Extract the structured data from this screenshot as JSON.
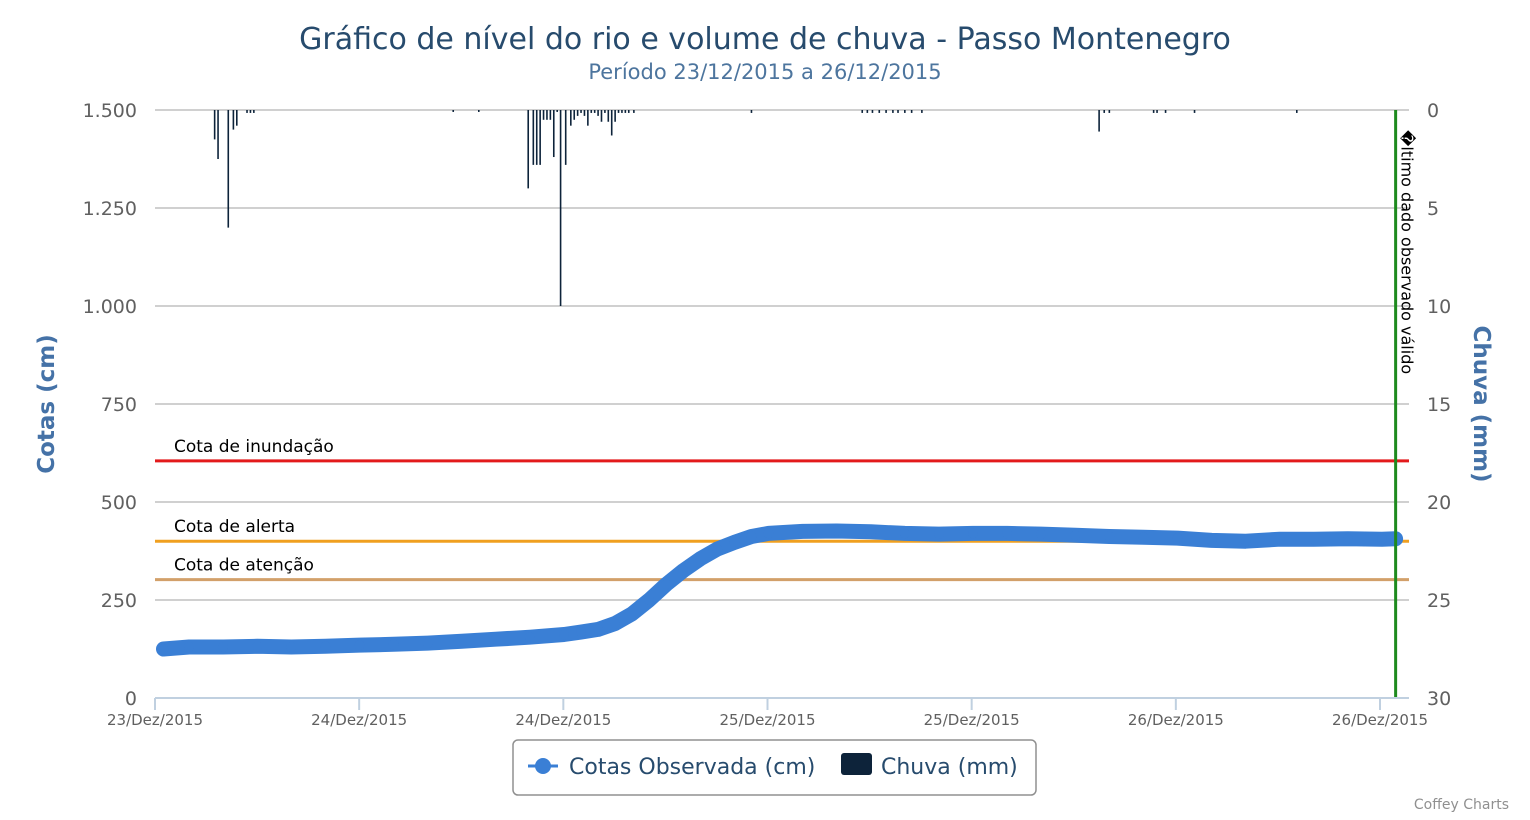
{
  "chart_data": {
    "type": "line",
    "title": "Gráfico de nível do rio e volume de chuva - Passo Montenegro",
    "subtitle": "Período 23/12/2015 a 26/12/2015",
    "y_left": {
      "label": "Cotas (cm)",
      "ylim": [
        0,
        1500
      ],
      "ticks": [
        "0",
        "250",
        "500",
        "750",
        "1.000",
        "1.250",
        "1.500"
      ],
      "tick_values": [
        0,
        250,
        500,
        750,
        1000,
        1250,
        1500
      ]
    },
    "y_right": {
      "label": "Chuva (mm)",
      "ylim": [
        0,
        30
      ],
      "reversed": true,
      "ticks": [
        "0",
        "5",
        "10",
        "15",
        "20",
        "25",
        "30"
      ],
      "tick_values": [
        0,
        5,
        10,
        15,
        20,
        25,
        30
      ]
    },
    "x_ticks": [
      "23/Dez/2015",
      "24/Dez/2015",
      "24/Dez/2015",
      "25/Dez/2015",
      "25/Dez/2015",
      "26/Dez/2015",
      "26/Dez/2015"
    ],
    "x_range_hours": [
      0,
      72
    ],
    "grid": true,
    "legend_position": "bottom-center",
    "plot_bands": [
      {
        "label": "Cota de inundação",
        "value": 605,
        "color": "#e31a1c"
      },
      {
        "label": "Cota de alerta",
        "value": 400,
        "color": "#f0a020"
      },
      {
        "label": "Cota de atenção",
        "value": 302,
        "color": "#d2a06a"
      }
    ],
    "vertical_line": {
      "label": "�ltimo dado observado válido",
      "x": 72.8,
      "color": "#1e8a1e"
    },
    "series": [
      {
        "name": "Cotas Observada (cm)",
        "kind": "line",
        "color": "#3a7fd5",
        "x": [
          0.5,
          2,
          4,
          6,
          8,
          10,
          12,
          14,
          16,
          18,
          20,
          22,
          24,
          25,
          26,
          27,
          28,
          29,
          30,
          31,
          32,
          33,
          34,
          35,
          36,
          38,
          40,
          42,
          44,
          46,
          48,
          50,
          52,
          54,
          56,
          58,
          60,
          62,
          64,
          66,
          68,
          70,
          72,
          72.8
        ],
        "values": [
          125,
          130,
          130,
          132,
          130,
          132,
          135,
          137,
          140,
          145,
          150,
          155,
          162,
          168,
          175,
          190,
          215,
          250,
          290,
          325,
          355,
          380,
          397,
          412,
          420,
          425,
          426,
          424,
          420,
          418,
          420,
          420,
          418,
          415,
          412,
          410,
          408,
          402,
          400,
          405,
          405,
          406,
          405,
          406
        ]
      },
      {
        "name": "Chuva (mm)",
        "kind": "bar",
        "color": "#0d233a",
        "x": [
          3.5,
          3.7,
          4.3,
          4.6,
          4.8,
          5.4,
          5.6,
          5.8,
          17.5,
          19.0,
          21.9,
          22.2,
          22.4,
          22.6,
          22.8,
          23.0,
          23.2,
          23.4,
          23.6,
          23.8,
          24.1,
          24.4,
          24.6,
          24.8,
          25.0,
          25.2,
          25.4,
          25.6,
          25.8,
          26.0,
          26.2,
          26.4,
          26.6,
          26.8,
          27.0,
          27.2,
          27.4,
          27.6,
          27.8,
          28.1,
          35.0,
          41.5,
          41.8,
          42.1,
          42.5,
          42.9,
          43.3,
          43.6,
          44.0,
          44.4,
          45.0,
          55.4,
          55.7,
          56.0,
          58.6,
          58.8,
          59.3,
          61.0,
          67.0
        ],
        "values": [
          1.5,
          2.5,
          6,
          1,
          0.8,
          0.15,
          0.15,
          0.15,
          0.1,
          0.1,
          4,
          2.8,
          2.8,
          2.8,
          0.5,
          0.5,
          0.5,
          2.4,
          0.1,
          10,
          2.8,
          0.8,
          0.5,
          0.3,
          0.15,
          0.3,
          0.8,
          0.15,
          0.15,
          0.3,
          0.6,
          0.15,
          0.6,
          1.3,
          0.6,
          0.15,
          0.15,
          0.15,
          0.15,
          0.15,
          0.15,
          0.15,
          0.15,
          0.15,
          0.15,
          0.15,
          0.15,
          0.15,
          0.15,
          0.15,
          0.15,
          1.1,
          0.15,
          0.15,
          0.15,
          0.15,
          0.15,
          0.15,
          0.15
        ]
      }
    ],
    "credits": "Coffey Charts"
  }
}
